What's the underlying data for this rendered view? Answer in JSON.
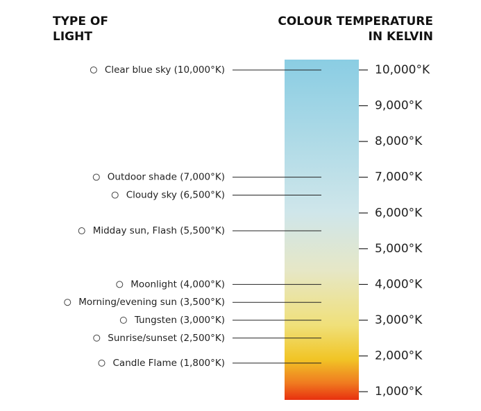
{
  "header": {
    "left": [
      "TYPE OF",
      "LIGHT"
    ],
    "right": [
      "COLOUR TEMPERATURE",
      "IN KELVIN"
    ]
  },
  "scale": {
    "ylim": [
      770,
      10290
    ],
    "yticks": [
      {
        "value": 10000,
        "label": "10,000°K"
      },
      {
        "value": 9000,
        "label": "9,000°K"
      },
      {
        "value": 8000,
        "label": "8,000°K"
      },
      {
        "value": 7000,
        "label": "7,000°K"
      },
      {
        "value": 6000,
        "label": "6,000°K"
      },
      {
        "value": 5000,
        "label": "5,000°K"
      },
      {
        "value": 4000,
        "label": "4,000°K"
      },
      {
        "value": 3000,
        "label": "3,000°K"
      },
      {
        "value": 2000,
        "label": "2,000°K"
      },
      {
        "value": 1000,
        "label": "1,000°K"
      }
    ]
  },
  "items": [
    {
      "label": "Clear blue sky (10,000°K)",
      "value": 10000
    },
    {
      "label": "Outdoor shade (7,000°K)",
      "value": 7000
    },
    {
      "label": "Cloudy sky (6,500°K)",
      "value": 6500
    },
    {
      "label": "Midday sun, Flash (5,500°K)",
      "value": 5500
    },
    {
      "label": "Moonlight (4,000°K)",
      "value": 4000
    },
    {
      "label": "Morning/evening sun (3,500°K)",
      "value": 3500
    },
    {
      "label": "Tungsten (3,000°K)",
      "value": 3000
    },
    {
      "label": "Sunrise/sunset (2,500°K)",
      "value": 2500
    },
    {
      "label": "Candle Flame (1,800°K)",
      "value": 1800
    }
  ]
}
